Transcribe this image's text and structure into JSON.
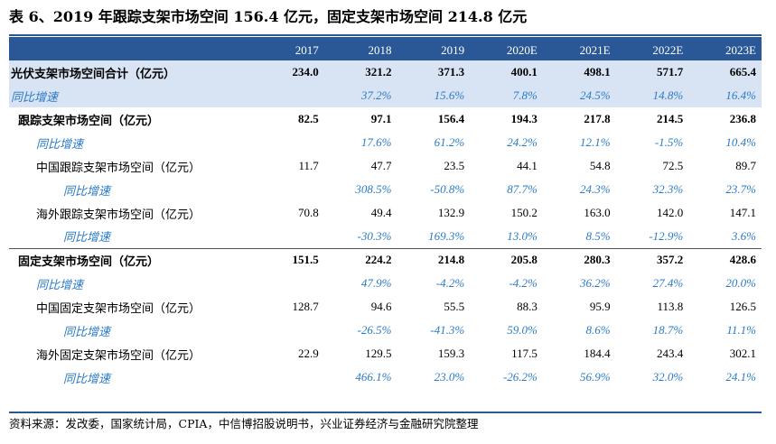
{
  "title": "表 6、2019 年跟踪支架市场空间 156.4 亿元，固定支架市场空间 214.8 亿元",
  "columns": [
    "2017",
    "2018",
    "2019",
    "2020E",
    "2021E",
    "2022E",
    "2023E"
  ],
  "rows": [
    {
      "label": "光伏支架市场空间合计（亿元）",
      "values": [
        "234.0",
        "321.2",
        "371.3",
        "400.1",
        "498.1",
        "571.7",
        "665.4"
      ]
    },
    {
      "label": "同比增速",
      "values": [
        "",
        "37.2%",
        "15.6%",
        "7.8%",
        "24.5%",
        "14.8%",
        "16.4%"
      ]
    },
    {
      "label": "跟踪支架市场空间（亿元）",
      "values": [
        "82.5",
        "97.1",
        "156.4",
        "194.3",
        "217.8",
        "214.5",
        "236.8"
      ]
    },
    {
      "label": "同比增速",
      "values": [
        "",
        "17.6%",
        "61.2%",
        "24.2%",
        "12.1%",
        "-1.5%",
        "10.4%"
      ]
    },
    {
      "label": "中国跟踪支架市场空间（亿元）",
      "values": [
        "11.7",
        "47.7",
        "23.5",
        "44.1",
        "54.8",
        "72.5",
        "89.7"
      ]
    },
    {
      "label": "同比增速",
      "values": [
        "",
        "308.5%",
        "-50.8%",
        "87.7%",
        "24.3%",
        "32.3%",
        "23.7%"
      ]
    },
    {
      "label": "海外跟踪支架市场空间（亿元）",
      "values": [
        "70.8",
        "49.4",
        "132.9",
        "150.2",
        "163.0",
        "142.0",
        "147.1"
      ]
    },
    {
      "label": "同比增速",
      "values": [
        "",
        "-30.3%",
        "169.3%",
        "13.0%",
        "8.5%",
        "-12.9%",
        "3.6%"
      ]
    },
    {
      "label": "固定支架市场空间（亿元）",
      "values": [
        "151.5",
        "224.2",
        "214.8",
        "205.8",
        "280.3",
        "357.2",
        "428.6"
      ]
    },
    {
      "label": "同比增速",
      "values": [
        "",
        "47.9%",
        "-4.2%",
        "-4.2%",
        "36.2%",
        "27.4%",
        "20.0%"
      ]
    },
    {
      "label": "中国固定支架市场空间（亿元）",
      "values": [
        "128.7",
        "94.6",
        "55.5",
        "88.3",
        "95.9",
        "113.8",
        "126.5"
      ]
    },
    {
      "label": "同比增速",
      "values": [
        "",
        "-26.5%",
        "-41.3%",
        "59.0%",
        "8.6%",
        "18.7%",
        "11.1%"
      ]
    },
    {
      "label": "海外固定支架市场空间（亿元）",
      "values": [
        "22.9",
        "129.5",
        "159.3",
        "117.5",
        "184.4",
        "243.4",
        "302.1"
      ]
    },
    {
      "label": "同比增速",
      "values": [
        "",
        "466.1%",
        "23.0%",
        "-26.2%",
        "56.9%",
        "32.0%",
        "24.1%"
      ]
    }
  ],
  "source": "资料来源：发改委，国家统计局，CPIA，中信博招股说明书，兴业证券经济与金融研究院整理",
  "colors": {
    "header_bg": "#2a5896",
    "total_bg": "#d8e4f4",
    "growth_text": "#2a7ac6"
  }
}
